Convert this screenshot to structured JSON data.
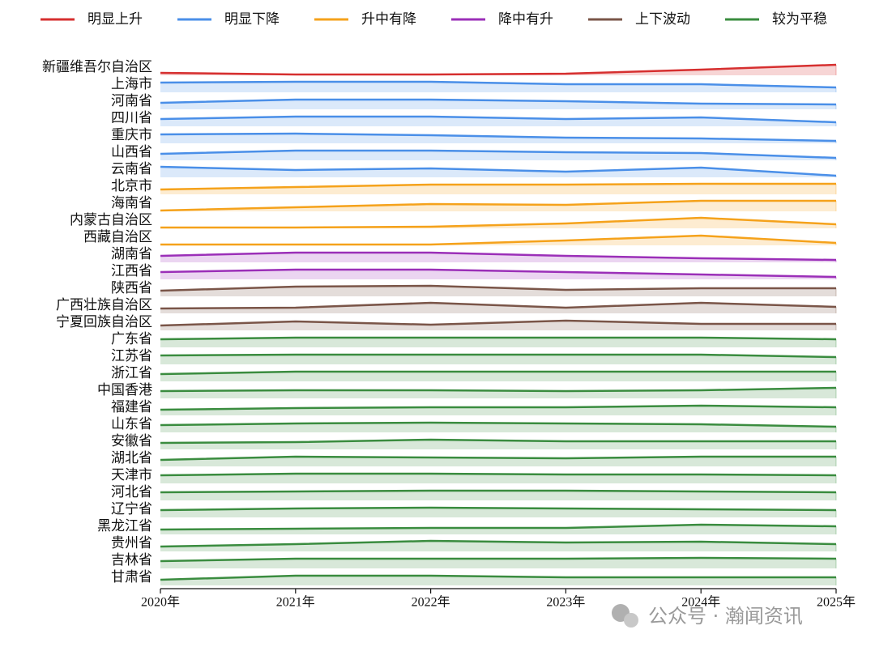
{
  "watermark": "公众号 · 瀚闻资讯",
  "chart_data": {
    "type": "ridgeline",
    "categories": [
      "2020年",
      "2021年",
      "2022年",
      "2023年",
      "2024年",
      "2025年"
    ],
    "series": [
      {
        "name": "明显上升",
        "color": "#d62f2f",
        "rows": [
          {
            "name": "新疆维吾尔自治区",
            "values": [
              3,
              1,
              1,
              2,
              7,
              13
            ]
          }
        ]
      },
      {
        "name": "明显下降",
        "color": "#4a8fe8",
        "rows": [
          {
            "name": "上海市",
            "values": [
              12,
              13,
              13,
              10,
              10,
              6
            ]
          },
          {
            "name": "河南省",
            "values": [
              8,
              12,
              12,
              10,
              7,
              6
            ]
          },
          {
            "name": "四川省",
            "values": [
              9,
              12,
              12,
              9,
              11,
              5
            ]
          },
          {
            "name": "重庆市",
            "values": [
              11,
              12,
              10,
              7,
              6,
              3
            ]
          },
          {
            "name": "山西省",
            "values": [
              8,
              12,
              12,
              10,
              9,
              3
            ]
          },
          {
            "name": "云南省",
            "values": [
              13,
              9,
              11,
              7,
              12,
              2
            ]
          }
        ]
      },
      {
        "name": "升中有降",
        "color": "#f5a21b",
        "rows": [
          {
            "name": "北京市",
            "values": [
              6,
              9,
              12,
              12,
              13,
              13
            ]
          },
          {
            "name": "海南省",
            "values": [
              1,
              5,
              9,
              8,
              13,
              13
            ]
          },
          {
            "name": "内蒙古自治区",
            "values": [
              1,
              1,
              2,
              6,
              13,
              5
            ]
          },
          {
            "name": "西藏自治区",
            "values": [
              1,
              1,
              1,
              6,
              12,
              3
            ]
          }
        ]
      },
      {
        "name": "降中有升",
        "color": "#9b2fb8",
        "rows": [
          {
            "name": "湖南省",
            "values": [
              8,
              12,
              12,
              8,
              5,
              3
            ]
          },
          {
            "name": "江西省",
            "values": [
              9,
              12,
              12,
              9,
              6,
              3
            ]
          }
        ]
      },
      {
        "name": "上下波动",
        "color": "#7a5548",
        "rows": [
          {
            "name": "陕西省",
            "values": [
              7,
              12,
              13,
              8,
              10,
              10
            ]
          },
          {
            "name": "广西壮族自治区",
            "values": [
              6,
              7,
              13,
              7,
              13,
              8
            ]
          },
          {
            "name": "宁夏回族自治区",
            "values": [
              6,
              11,
              7,
              12,
              8,
              8
            ]
          }
        ]
      },
      {
        "name": "较为平稳",
        "color": "#3a8c3f",
        "rows": [
          {
            "name": "广东省",
            "values": [
              10,
              12,
              12,
              12,
              12,
              10
            ]
          },
          {
            "name": "江苏省",
            "values": [
              11,
              12,
              12,
              12,
              12,
              9
            ]
          },
          {
            "name": "浙江省",
            "values": [
              9,
              12,
              12,
              12,
              12,
              12
            ]
          },
          {
            "name": "中国香港",
            "values": [
              9,
              10,
              10,
              9,
              10,
              13
            ]
          },
          {
            "name": "福建省",
            "values": [
              7,
              9,
              10,
              10,
              12,
              10
            ]
          },
          {
            "name": "山东省",
            "values": [
              9,
              11,
              12,
              11,
              10,
              7
            ]
          },
          {
            "name": "安徽省",
            "values": [
              8,
              9,
              12,
              10,
              10,
              10
            ]
          },
          {
            "name": "湖北省",
            "values": [
              8,
              12,
              11,
              10,
              12,
              12
            ]
          },
          {
            "name": "天津市",
            "values": [
              10,
              12,
              12,
              11,
              11,
              10
            ]
          },
          {
            "name": "河北省",
            "values": [
              10,
              11,
              12,
              12,
              11,
              10
            ]
          },
          {
            "name": "辽宁省",
            "values": [
              9,
              11,
              12,
              11,
              10,
              9
            ]
          },
          {
            "name": "黑龙江省",
            "values": [
              6,
              7,
              8,
              8,
              12,
              10
            ]
          },
          {
            "name": "贵州省",
            "values": [
              6,
              9,
              13,
              11,
              12,
              9
            ]
          },
          {
            "name": "吉林省",
            "values": [
              9,
              12,
              12,
              12,
              13,
              12
            ]
          },
          {
            "name": "甘肃省",
            "values": [
              7,
              12,
              12,
              10,
              10,
              10
            ]
          }
        ]
      }
    ]
  }
}
